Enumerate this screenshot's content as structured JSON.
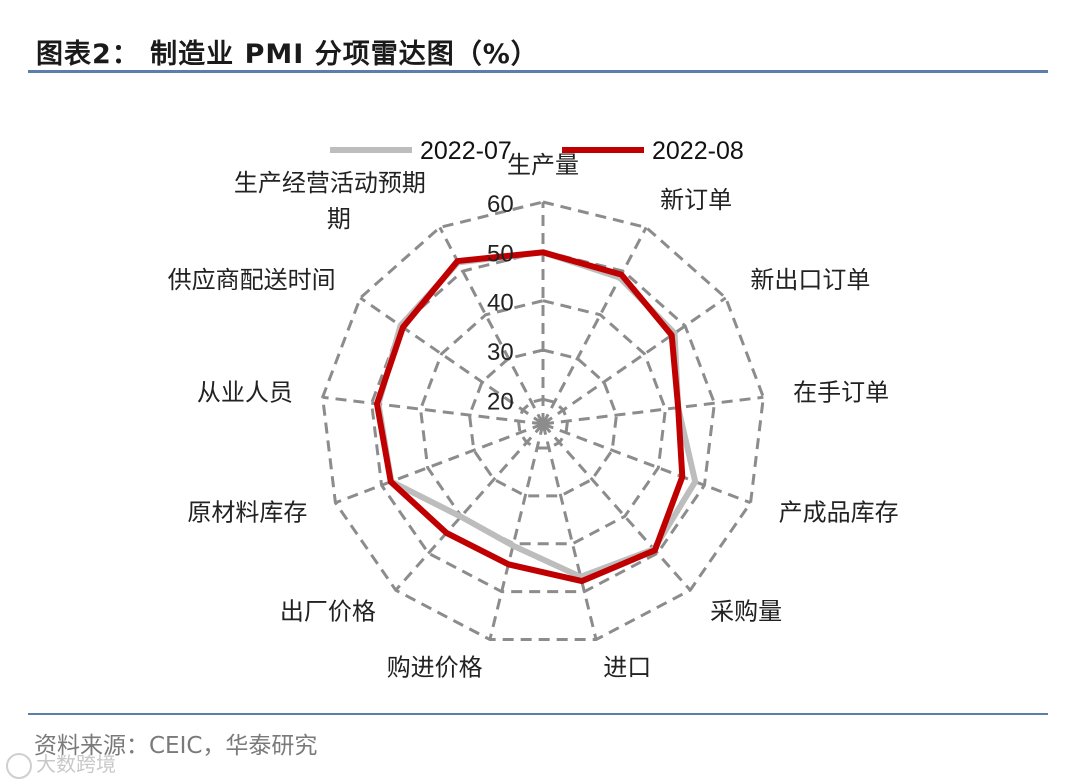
{
  "header": {
    "title": "图表2：  制造业 PMI 分项雷达图（%）"
  },
  "footer": {
    "source": "资料来源：CEIC，华泰研究",
    "watermark": "大数跨境"
  },
  "colors": {
    "grid": "#8c8c8c",
    "rule": "#5b7fa8",
    "series_2022_07": "#bdbdbd",
    "series_2022_08": "#c00000"
  },
  "chart_data": {
    "type": "radar",
    "axes": [
      "生产量",
      "新订单",
      "新出口订单",
      "在手订单",
      "产成品库存",
      "采购量",
      "进口",
      "购进价格",
      "出厂价格",
      "原材料库存",
      "从业人员",
      "供应商配送时间",
      "生产经营活动预期"
    ],
    "axis_label_lines": [
      [
        "生产量"
      ],
      [
        "新订单"
      ],
      [
        "新出口订单"
      ],
      [
        "在手订单"
      ],
      [
        "产成品库存"
      ],
      [
        "采购量"
      ],
      [
        "进口"
      ],
      [
        "购进价格"
      ],
      [
        "出厂价格"
      ],
      [
        "原材料库存"
      ],
      [
        "从业人员"
      ],
      [
        "供应商配送时间"
      ],
      [
        "生产经营活动预期",
        "期"
      ]
    ],
    "r_ticks": [
      20,
      30,
      40,
      50,
      60
    ],
    "r_tick_labels": [
      "20",
      "30",
      "40",
      "50",
      "60"
    ],
    "r_min": 15,
    "r_max": 60,
    "legend_position": "top",
    "series": [
      {
        "name": "2022-07",
        "values": [
          49.8,
          48.5,
          47.4,
          42.6,
          48.0,
          48.9,
          46.9,
          40.4,
          40.1,
          47.9,
          48.6,
          50.1,
          52.0
        ]
      },
      {
        "name": "2022-08",
        "values": [
          49.8,
          49.2,
          46.7,
          42.6,
          45.2,
          49.2,
          47.8,
          44.3,
          44.5,
          48.0,
          48.9,
          49.5,
          52.3
        ]
      }
    ]
  }
}
